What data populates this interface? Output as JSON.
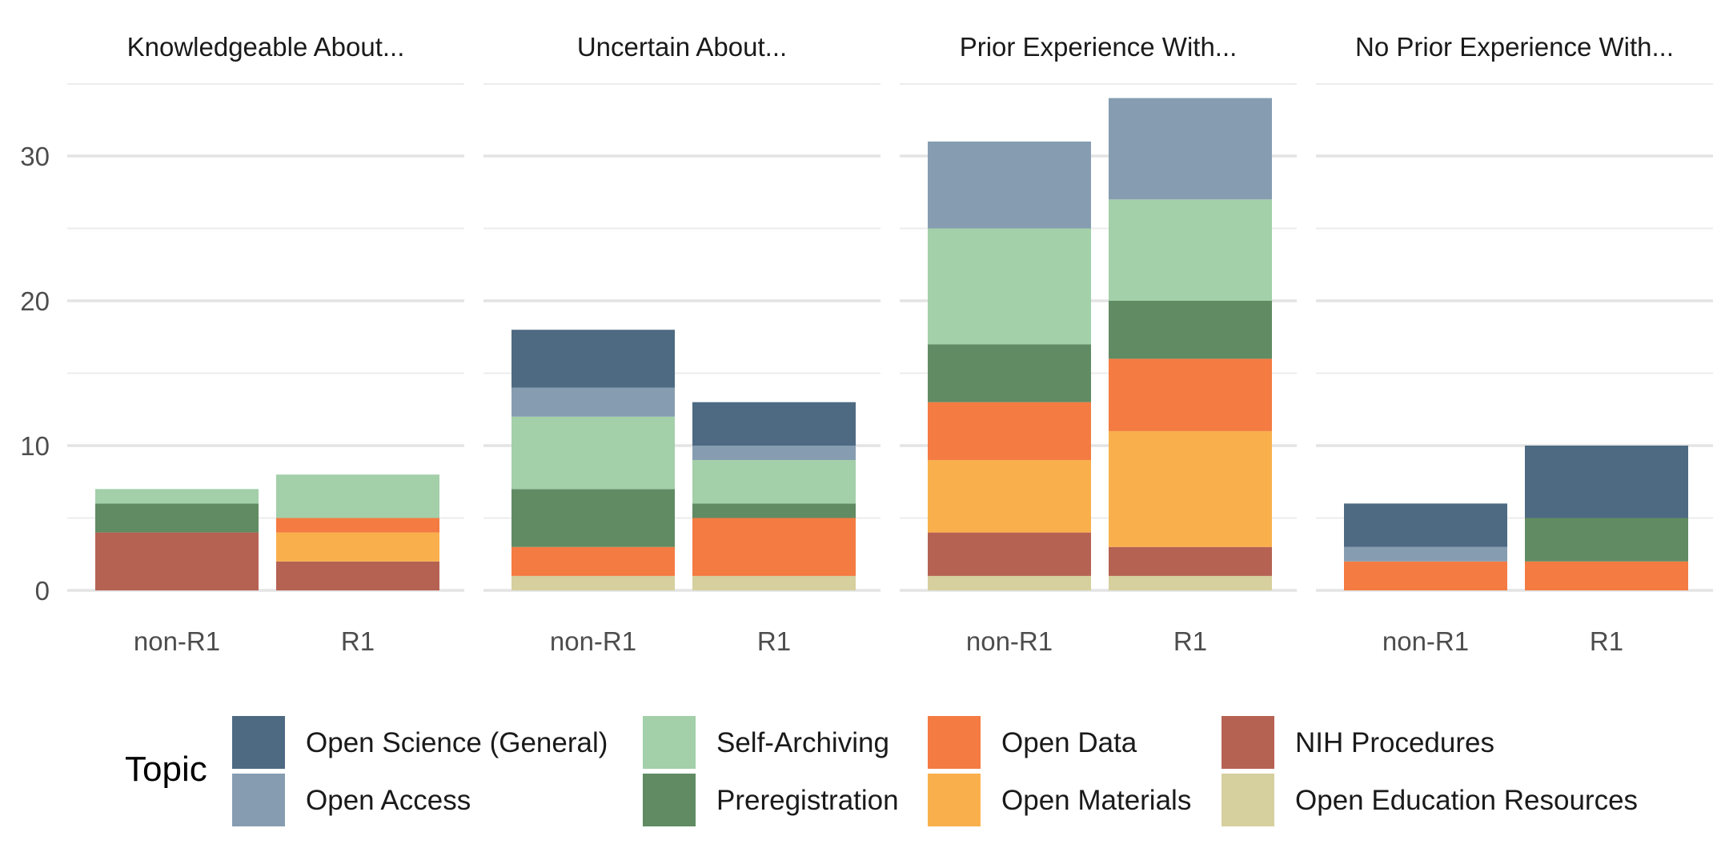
{
  "chart_data": {
    "type": "bar",
    "stacked": true,
    "facets": [
      "Knowledgeable About...",
      "Uncertain About...",
      "Prior Experience With...",
      "No Prior Experience With..."
    ],
    "categories": [
      "non-R1",
      "R1"
    ],
    "ylim": [
      0,
      34
    ],
    "yticks": [
      0,
      10,
      20,
      30
    ],
    "grid": true,
    "legend": {
      "title": "Topic",
      "position": "bottom",
      "columns": [
        [
          "Open Science (General)",
          "Open Access"
        ],
        [
          "Self-Archiving",
          "Preregistration"
        ],
        [
          "Open Data",
          "Open Materials"
        ],
        [
          "NIH Procedures",
          "Open Education Resources"
        ]
      ]
    },
    "series": [
      {
        "name": "Open Science (General)",
        "color": "#4e6a82",
        "values": [
          [
            0,
            0
          ],
          [
            4,
            3
          ],
          [
            0,
            0
          ],
          [
            3,
            5
          ]
        ]
      },
      {
        "name": "Open Access",
        "color": "#869db1",
        "values": [
          [
            0,
            0
          ],
          [
            2,
            1
          ],
          [
            6,
            7
          ],
          [
            1,
            0
          ]
        ]
      },
      {
        "name": "Self-Archiving",
        "color": "#a3cfa9",
        "values": [
          [
            1,
            3
          ],
          [
            5,
            3
          ],
          [
            8,
            7
          ],
          [
            0,
            0
          ]
        ]
      },
      {
        "name": "Preregistration",
        "color": "#608b63",
        "values": [
          [
            2,
            0
          ],
          [
            4,
            1
          ],
          [
            4,
            4
          ],
          [
            0,
            3
          ]
        ]
      },
      {
        "name": "Open Data",
        "color": "#f47b42",
        "values": [
          [
            0,
            1
          ],
          [
            2,
            4
          ],
          [
            4,
            5
          ],
          [
            2,
            2
          ]
        ]
      },
      {
        "name": "Open Materials",
        "color": "#f9b04c",
        "values": [
          [
            0,
            2
          ],
          [
            0,
            0
          ],
          [
            5,
            8
          ],
          [
            0,
            0
          ]
        ]
      },
      {
        "name": "NIH Procedures",
        "color": "#b66253",
        "values": [
          [
            4,
            2
          ],
          [
            0,
            0
          ],
          [
            3,
            2
          ],
          [
            0,
            0
          ]
        ]
      },
      {
        "name": "Open Education Resources",
        "color": "#d6cf9e",
        "values": [
          [
            0,
            0
          ],
          [
            1,
            1
          ],
          [
            1,
            1
          ],
          [
            0,
            0
          ]
        ]
      }
    ]
  }
}
